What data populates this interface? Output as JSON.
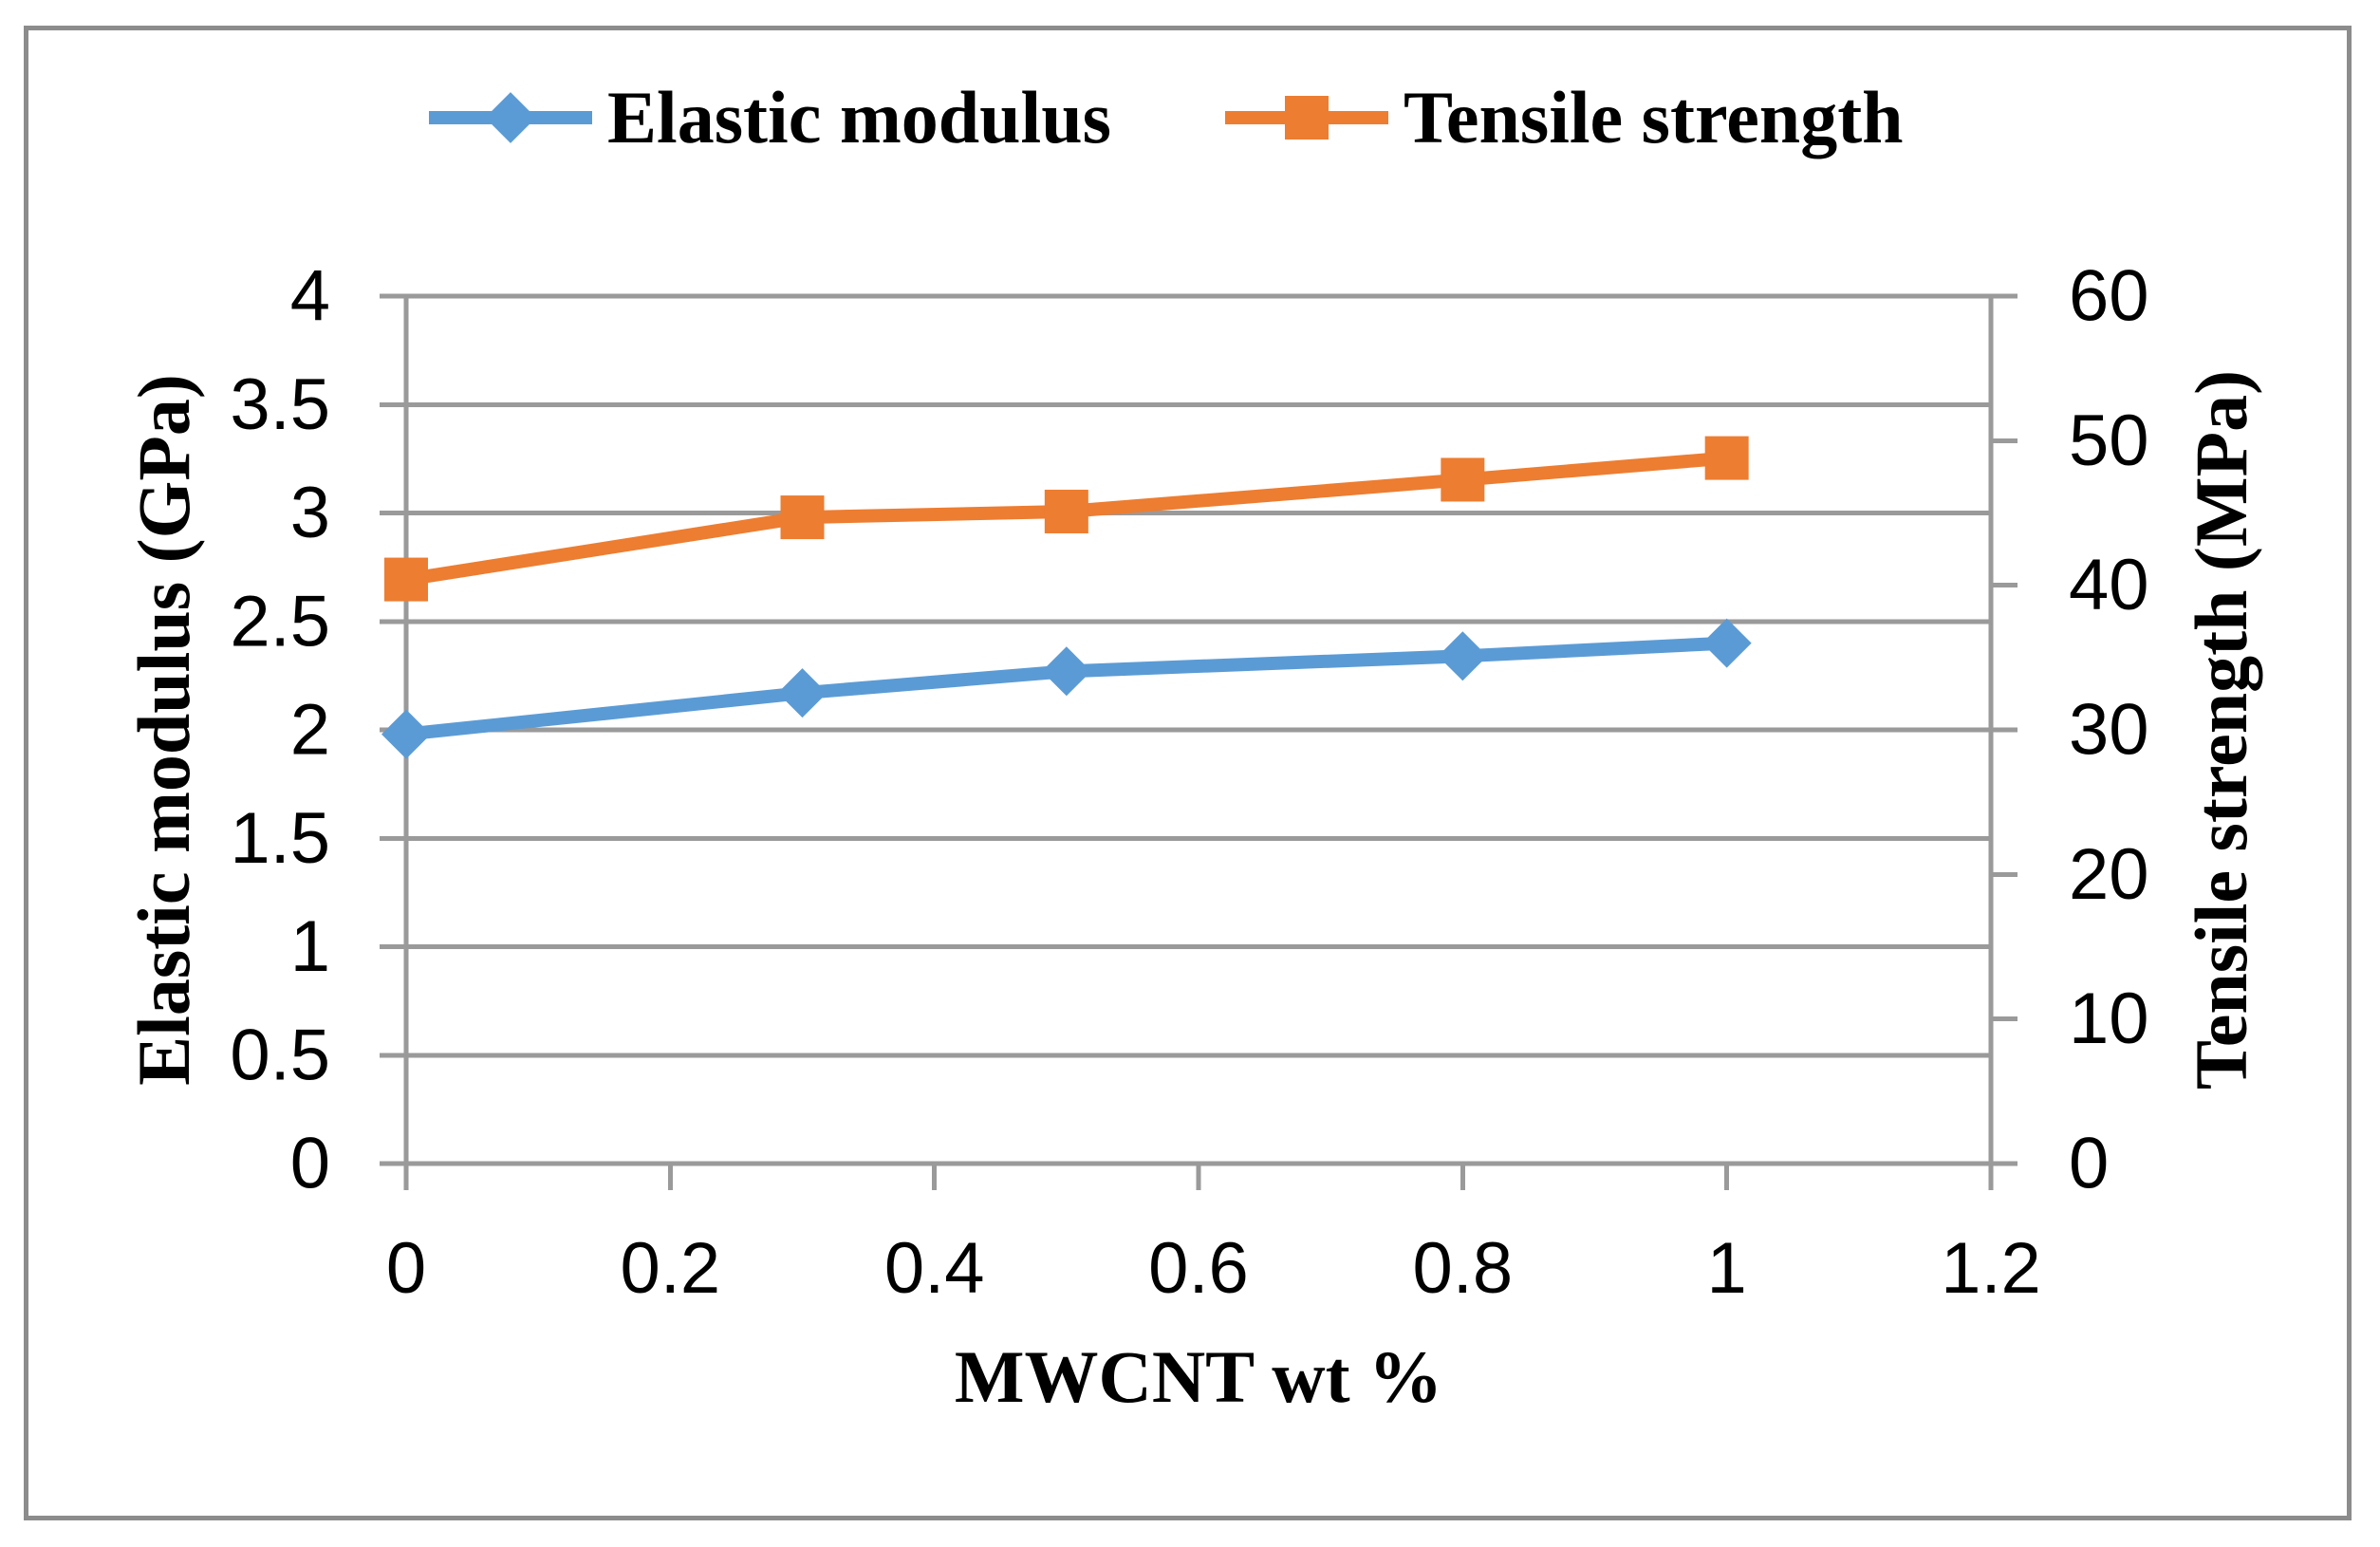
{
  "chart_data": {
    "type": "line",
    "xlabel": "MWCNT wt %",
    "ylabel_left": "Elastic modulus (GPa)",
    "ylabel_right": "Tensile strength (MPa)",
    "x": [
      0,
      0.3,
      0.5,
      0.8,
      1
    ],
    "series": [
      {
        "name": "Elastic modulus",
        "axis": "left",
        "color": "#5B9BD5",
        "marker": "diamond",
        "values": [
          1.98,
          2.17,
          2.27,
          2.34,
          2.4
        ]
      },
      {
        "name": "Tensile strength",
        "axis": "right",
        "color": "#ED7D31",
        "marker": "square",
        "values": [
          40.4,
          44.7,
          45.1,
          47.3,
          48.8
        ]
      }
    ],
    "xlim": [
      0,
      1.2
    ],
    "ylim_left": [
      0,
      4
    ],
    "ylim_right": [
      0,
      60
    ],
    "x_tick_labels": [
      "0",
      "0.2",
      "0.4",
      "0.6",
      "0.8",
      "1",
      "1.2"
    ],
    "y_left_tick_labels": [
      "0",
      "0.5",
      "1",
      "1.5",
      "2",
      "2.5",
      "3",
      "3.5",
      "4"
    ],
    "y_right_tick_labels": [
      "0",
      "10",
      "20",
      "30",
      "40",
      "50",
      "60"
    ],
    "grid": "horizontal",
    "legend_position": "top"
  },
  "colors": {
    "grid": "#9A9A9A",
    "axis": "#9A9A9A",
    "border": "#8C8C8C",
    "text": "#000000"
  }
}
